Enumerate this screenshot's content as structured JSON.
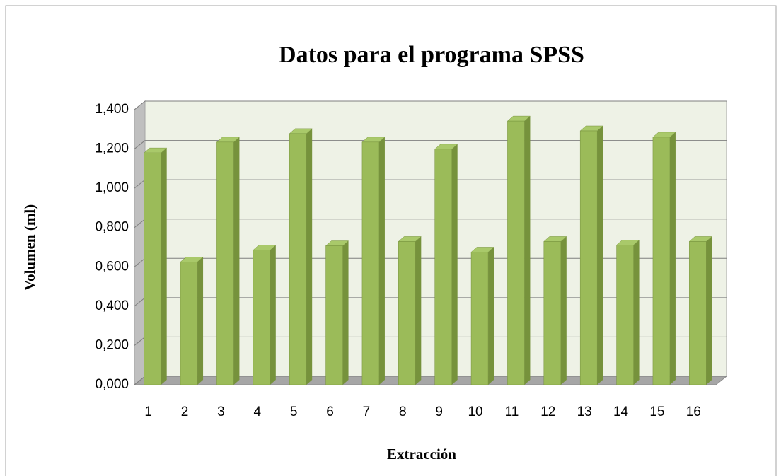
{
  "chart_data": {
    "type": "bar",
    "title": "Datos para el programa SPSS",
    "x_label": "Extracción",
    "y_label": "Volumen  (ml)",
    "categories": [
      "1",
      "2",
      "3",
      "4",
      "5",
      "6",
      "7",
      "8",
      "9",
      "10",
      "11",
      "12",
      "13",
      "14",
      "15",
      "16"
    ],
    "values": [
      1.18,
      0.625,
      1.235,
      0.685,
      1.278,
      0.707,
      1.235,
      0.729,
      1.199,
      0.675,
      1.342,
      0.729,
      1.292,
      0.711,
      1.26,
      0.729
    ],
    "color": "#9bbb59",
    "ylim": [
      0,
      1.4
    ],
    "yticks": [
      {
        "value": 0,
        "label": "0,000"
      },
      {
        "value": 0.2,
        "label": "0,200"
      },
      {
        "value": 0.4,
        "label": "0,400"
      },
      {
        "value": 0.6,
        "label": "0,600"
      },
      {
        "value": 0.8,
        "label": "0,800"
      },
      {
        "value": 1.0,
        "label": "1,000"
      },
      {
        "value": 1.2,
        "label": "1,200"
      },
      {
        "value": 1.4,
        "label": "1,400"
      }
    ],
    "grid": true
  }
}
